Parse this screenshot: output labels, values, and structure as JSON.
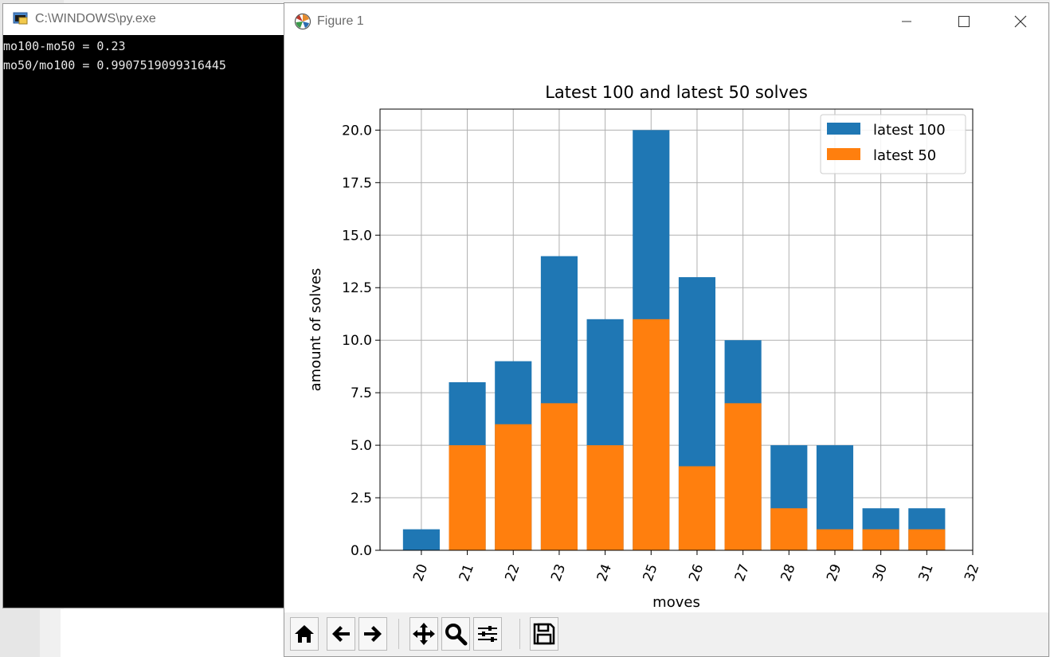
{
  "console": {
    "title": "C:\\WINDOWS\\py.exe",
    "lines": [
      "mo100-mo50 = 0.23",
      "mo50/mo100 = 0.9907519099316445"
    ]
  },
  "figure": {
    "title": "Figure 1"
  },
  "toolbar": {
    "buttons": [
      "home-icon",
      "back-icon",
      "forward-icon",
      "pan-icon",
      "zoom-icon",
      "configure-icon",
      "save-icon"
    ]
  },
  "colors": {
    "series1": "#1f77b4",
    "series2": "#ff7f0e",
    "grid": "#b0b0b0"
  },
  "chart_data": {
    "type": "bar",
    "title": "Latest 100 and latest 50 solves",
    "xlabel": "moves",
    "ylabel": "amount of solves",
    "categories": [
      20,
      21,
      22,
      23,
      24,
      25,
      26,
      27,
      28,
      29,
      30,
      31
    ],
    "x_ticks": [
      "20",
      "21",
      "22",
      "23",
      "24",
      "25",
      "26",
      "27",
      "28",
      "29",
      "30",
      "31",
      "32"
    ],
    "y_ticks": [
      "0.0",
      "2.5",
      "5.0",
      "7.5",
      "10.0",
      "12.5",
      "15.0",
      "17.5",
      "20.0"
    ],
    "ylim": [
      0,
      21
    ],
    "xlim": [
      19.1,
      32
    ],
    "grid": true,
    "legend_position": "upper right",
    "series": [
      {
        "name": "latest 100",
        "color": "#1f77b4",
        "values": [
          1,
          8,
          9,
          14,
          11,
          20,
          13,
          10,
          5,
          5,
          2,
          2
        ]
      },
      {
        "name": "latest 50",
        "color": "#ff7f0e",
        "values": [
          0,
          5,
          6,
          7,
          5,
          11,
          4,
          7,
          2,
          1,
          1,
          1
        ]
      }
    ]
  }
}
